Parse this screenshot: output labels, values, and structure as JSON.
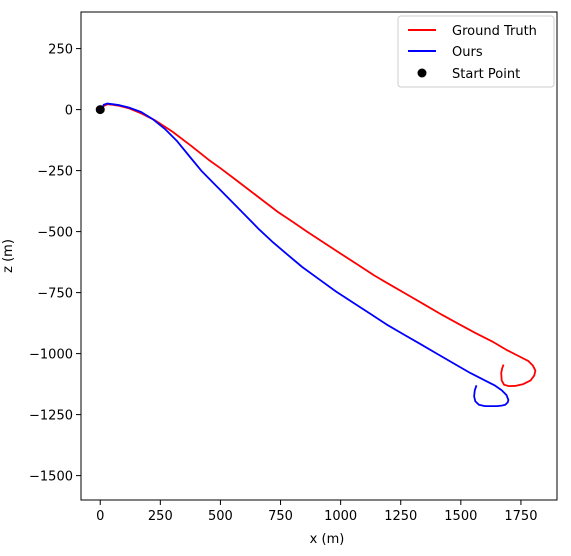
{
  "chart_data": {
    "type": "line",
    "xlabel": "x (m)",
    "ylabel": "z (m)",
    "xlim": [
      -80,
      1900
    ],
    "ylim": [
      -1600,
      400
    ],
    "xticks": [
      0,
      250,
      500,
      750,
      1000,
      1250,
      1500,
      1750
    ],
    "yticks": [
      250,
      0,
      -250,
      -500,
      -750,
      -1000,
      -1250,
      -1500
    ],
    "xtick_labels": [
      "0",
      "250",
      "500",
      "750",
      "1000",
      "1250",
      "1500",
      "1750"
    ],
    "ytick_labels": [
      "250",
      "0",
      "−250",
      "−500",
      "−750",
      "−1000",
      "−1250",
      "−1500"
    ],
    "grid": false,
    "legend_position": "top-right",
    "series": [
      {
        "name": "Ground Truth",
        "color": "#ff0000",
        "x": [
          5,
          15,
          30,
          50,
          80,
          120,
          170,
          230,
          300,
          380,
          450,
          500,
          560,
          620,
          680,
          740,
          800,
          860,
          930,
          1000,
          1070,
          1140,
          1210,
          1280,
          1350,
          1420,
          1490,
          1560,
          1630,
          1690,
          1740,
          1780,
          1800,
          1810,
          1805,
          1790,
          1760,
          1730,
          1700,
          1680,
          1670,
          1668,
          1672,
          1678
        ],
        "y": [
          0,
          15,
          22,
          20,
          15,
          5,
          -15,
          -45,
          -90,
          -150,
          -205,
          -240,
          -285,
          -330,
          -375,
          -420,
          -460,
          -500,
          -545,
          -590,
          -635,
          -680,
          -720,
          -760,
          -800,
          -840,
          -878,
          -915,
          -950,
          -985,
          -1010,
          -1030,
          -1050,
          -1070,
          -1090,
          -1110,
          -1125,
          -1132,
          -1133,
          -1128,
          -1110,
          -1080,
          -1060,
          -1045
        ]
      },
      {
        "name": "Ours",
        "color": "#0000ff",
        "x": [
          5,
          15,
          30,
          50,
          80,
          120,
          170,
          220,
          270,
          320,
          370,
          420,
          480,
          540,
          600,
          660,
          720,
          780,
          840,
          910,
          980,
          1050,
          1120,
          1190,
          1260,
          1330,
          1400,
          1470,
          1540,
          1600,
          1640,
          1670,
          1690,
          1698,
          1695,
          1685,
          1670,
          1650,
          1625,
          1600,
          1575,
          1560,
          1555,
          1558,
          1565
        ],
        "y": [
          0,
          20,
          25,
          22,
          18,
          8,
          -10,
          -40,
          -80,
          -130,
          -190,
          -250,
          -310,
          -370,
          -430,
          -490,
          -545,
          -595,
          -645,
          -695,
          -745,
          -790,
          -835,
          -880,
          -920,
          -960,
          -1000,
          -1040,
          -1080,
          -1110,
          -1130,
          -1150,
          -1170,
          -1190,
          -1200,
          -1210,
          -1213,
          -1215,
          -1215,
          -1215,
          -1210,
          -1195,
          -1175,
          -1150,
          -1130
        ]
      }
    ],
    "points": [
      {
        "name": "Start Point",
        "color": "#000000",
        "x": 0,
        "y": 0
      }
    ]
  }
}
